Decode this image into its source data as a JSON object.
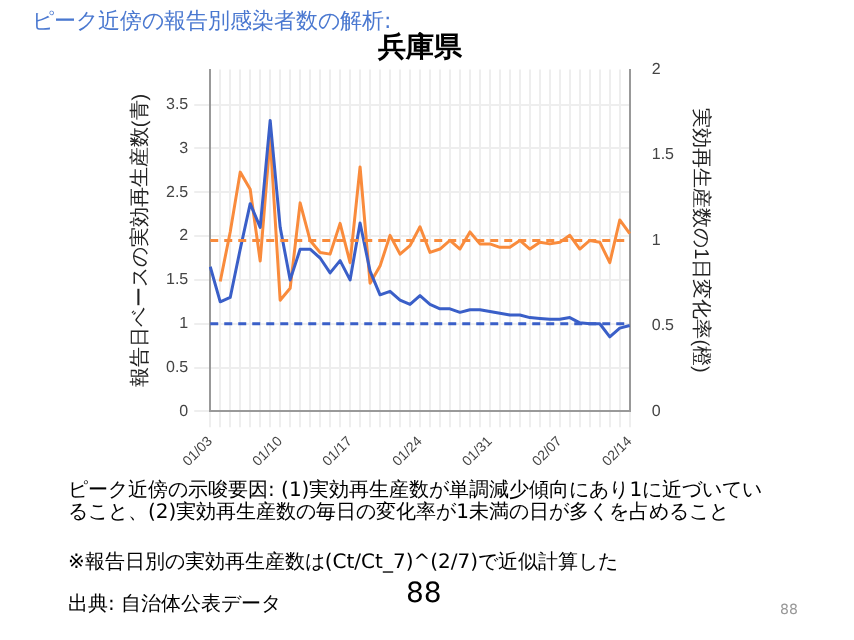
{
  "chart_data": {
    "type": "line",
    "title": "ピーク近傍の報告別感染者数の解析:",
    "subtitle": "兵庫県",
    "ylabel": "報告日ベースの実効再生産数(青)",
    "y2label": "実効再生産数の1日変化率(橙)",
    "categories": [
      "01/03",
      null,
      null,
      null,
      null,
      null,
      null,
      "01/10",
      null,
      null,
      null,
      null,
      null,
      null,
      "01/17",
      null,
      null,
      null,
      null,
      null,
      null,
      "01/24",
      null,
      null,
      null,
      null,
      null,
      null,
      "01/31",
      null,
      null,
      null,
      null,
      null,
      null,
      "02/07",
      null,
      null,
      null,
      null,
      null,
      null,
      "02/14"
    ],
    "series": [
      {
        "color": "#3a5fc8",
        "axis": "y",
        "values": [
          1.65,
          1.25,
          1.3,
          1.85,
          2.37,
          2.1,
          3.32,
          2.1,
          1.5,
          1.85,
          1.85,
          1.75,
          1.58,
          1.72,
          1.5,
          2.15,
          1.6,
          1.33,
          1.37,
          1.27,
          1.22,
          1.32,
          1.22,
          1.17,
          1.17,
          1.13,
          1.16,
          1.16,
          1.14,
          1.12,
          1.1,
          1.1,
          1.07,
          1.06,
          1.05,
          1.05,
          1.07,
          1.01,
          1.0,
          1.0,
          0.85,
          0.95,
          0.98
        ]
      },
      {
        "color": "#f98b3c",
        "axis": "y2",
        "values": [
          null,
          0.76,
          1.05,
          1.4,
          1.3,
          0.88,
          1.6,
          0.65,
          0.72,
          1.22,
          1.0,
          0.93,
          0.92,
          1.1,
          0.87,
          1.43,
          0.75,
          0.85,
          1.03,
          0.92,
          0.97,
          1.08,
          0.93,
          0.95,
          1.0,
          0.95,
          1.05,
          0.98,
          0.98,
          0.96,
          0.96,
          1.0,
          0.95,
          0.99,
          0.98,
          0.99,
          1.03,
          0.95,
          1.0,
          0.99,
          0.87,
          1.12,
          1.04
        ]
      }
    ],
    "ylim": [
      0,
      3.9
    ],
    "yticks": [
      0,
      0.5,
      1,
      1.5,
      2,
      2.5,
      3,
      3.5
    ],
    "y2lim": [
      0,
      2
    ],
    "y2ticks": [
      0,
      0.5,
      1,
      1.5,
      2
    ],
    "ref_lines": [
      {
        "axis": "y",
        "value": 1,
        "color": "#3a5fc8",
        "line_style": "dashed"
      },
      {
        "axis": "y2",
        "value": 1,
        "color": "#f98b3c",
        "line_style": "dashed"
      }
    ],
    "grid": true,
    "marker": "none",
    "line_style": "solid",
    "annotations": [
      "ピーク近傍の示唆要因: (1)実効再生産数が単調減少傾向にあり1に近づいていること、(2)実効再生産数の毎日の変化率が1未満の日が多くを占めること",
      "※報告日別の実効再生産数は(Ct/Ct_7)^(2/7)で近似計算した",
      "出典: 自治体公表データ",
      "88",
      "88"
    ]
  }
}
